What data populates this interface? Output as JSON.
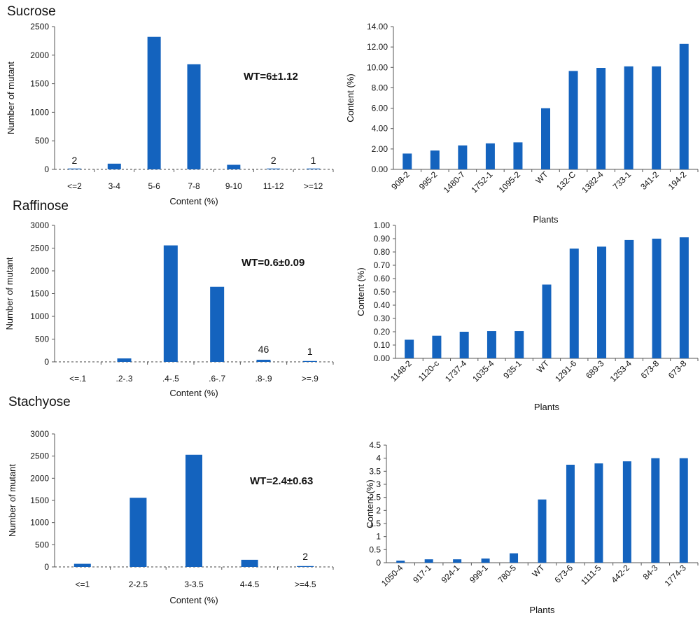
{
  "chart_data": [
    {
      "id": "sucrose_hist",
      "type": "bar",
      "panel_title": "Sucrose",
      "categories": [
        "<=2",
        "3-4",
        "5-6",
        "7-8",
        "9-10",
        "11-12",
        ">=12"
      ],
      "values": [
        2,
        100,
        2320,
        1840,
        80,
        2,
        1
      ],
      "data_labels": [
        "2",
        "",
        "",
        "",
        "",
        "2",
        "1"
      ],
      "ylim": [
        0,
        2500
      ],
      "yticks": [
        "0",
        "500",
        "1000",
        "1500",
        "2000",
        "2500"
      ],
      "xlabel": "Content (%)",
      "ylabel": "Number of mutant",
      "annotation": "WT=6±1.12"
    },
    {
      "id": "sucrose_plants",
      "type": "bar",
      "categories": [
        "908-2",
        "995-2",
        "1480-7",
        "1752-1",
        "1095-2",
        "WT",
        "132-C",
        "1382-4",
        "733-1",
        "341-2",
        "194-2"
      ],
      "values": [
        1.55,
        1.85,
        2.35,
        2.55,
        2.65,
        6.0,
        9.65,
        9.95,
        10.1,
        10.1,
        12.3
      ],
      "ylim": [
        0,
        14
      ],
      "yticks": [
        "0.00",
        "2.00",
        "4.00",
        "6.00",
        "8.00",
        "10.00",
        "12.00",
        "14.00"
      ],
      "xlabel": "Plants",
      "ylabel": "Content (%)"
    },
    {
      "id": "raffinose_hist",
      "type": "bar",
      "panel_title": "Raffinose",
      "categories": [
        "<=.1",
        ".2-.3",
        ".4-.5",
        ".6-.7",
        ".8-.9",
        ">=.9"
      ],
      "values": [
        0,
        75,
        2560,
        1650,
        46,
        1
      ],
      "data_labels": [
        "",
        "",
        "",
        "",
        "46",
        "1"
      ],
      "ylim": [
        0,
        3000
      ],
      "yticks": [
        "0",
        "500",
        "1000",
        "1500",
        "2000",
        "2500",
        "3000"
      ],
      "xlabel": "Content (%)",
      "ylabel": "Number of mutant",
      "annotation": "WT=0.6±0.09"
    },
    {
      "id": "raffinose_plants",
      "type": "bar",
      "categories": [
        "1148-2",
        "1120-c",
        "1737-4",
        "1035-4",
        "935-1",
        "WT",
        "1291-6",
        "689-3",
        "1253-4",
        "673-8",
        "673-8"
      ],
      "values": [
        0.14,
        0.17,
        0.2,
        0.205,
        0.205,
        0.555,
        0.825,
        0.84,
        0.89,
        0.9,
        0.91
      ],
      "ylim": [
        0,
        1
      ],
      "yticks": [
        "0.00",
        "0.10",
        "0.20",
        "0.30",
        "0.40",
        "0.50",
        "0.60",
        "0.70",
        "0.80",
        "0.90",
        "1.00"
      ],
      "xlabel": "Plants",
      "ylabel": "Content (%)"
    },
    {
      "id": "stachyose_hist",
      "type": "bar",
      "panel_title": "Stachyose",
      "categories": [
        "<=1",
        "2-2.5",
        "3-3.5",
        "4-4.5",
        ">=4.5"
      ],
      "values": [
        70,
        1560,
        2530,
        160,
        2
      ],
      "data_labels": [
        "",
        "",
        "",
        "",
        "2"
      ],
      "ylim": [
        0,
        3000
      ],
      "yticks": [
        "0",
        "500",
        "1000",
        "1500",
        "2000",
        "2500",
        "3000"
      ],
      "xlabel": "Content (%)",
      "ylabel": "Number of mutant",
      "annotation": "WT=2.4±0.63"
    },
    {
      "id": "stachyose_plants",
      "type": "bar",
      "categories": [
        "1050-4",
        "917-1",
        "924-1",
        "999-1",
        "780-5",
        "WT",
        "673-6",
        "1111-5",
        "442-2",
        "84-3",
        "1774-3"
      ],
      "values": [
        0.08,
        0.13,
        0.13,
        0.16,
        0.36,
        2.42,
        3.75,
        3.8,
        3.88,
        4.0,
        4.0
      ],
      "ylim": [
        0,
        4.5
      ],
      "yticks": [
        "0",
        "0.5",
        "1",
        "1.5",
        "2",
        "2.5",
        "3",
        "3.5",
        "4",
        "4.5"
      ],
      "xlabel": "Plants",
      "ylabel": "Content (%)"
    }
  ],
  "colors": {
    "bar": "#1463be",
    "axis": "#555555"
  }
}
